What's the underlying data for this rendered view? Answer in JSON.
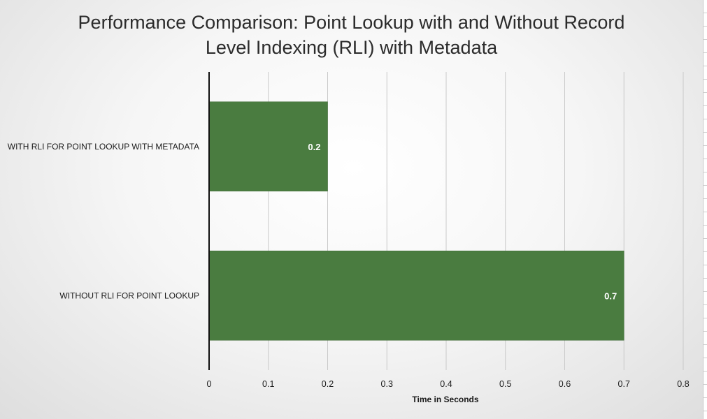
{
  "chart_data": {
    "type": "bar",
    "orientation": "horizontal",
    "title_lines": [
      "Performance Comparison: Point Lookup with and Without Record",
      "Level Indexing (RLI) with Metadata"
    ],
    "categories": [
      "WITH RLI FOR POINT LOOKUP WITH METADATA",
      "WITHOUT RLI FOR POINT LOOKUP"
    ],
    "values": [
      0.2,
      0.7
    ],
    "data_labels": [
      "0.2",
      "0.7"
    ],
    "xlabel": "Time in Seconds",
    "xlim": [
      0,
      0.8
    ],
    "xticks": [
      "0",
      "0.1",
      "0.2",
      "0.3",
      "0.4",
      "0.5",
      "0.6",
      "0.7",
      "0.8"
    ],
    "grid": "vertical",
    "legend": "none",
    "bar_color": "#4a7c40"
  }
}
